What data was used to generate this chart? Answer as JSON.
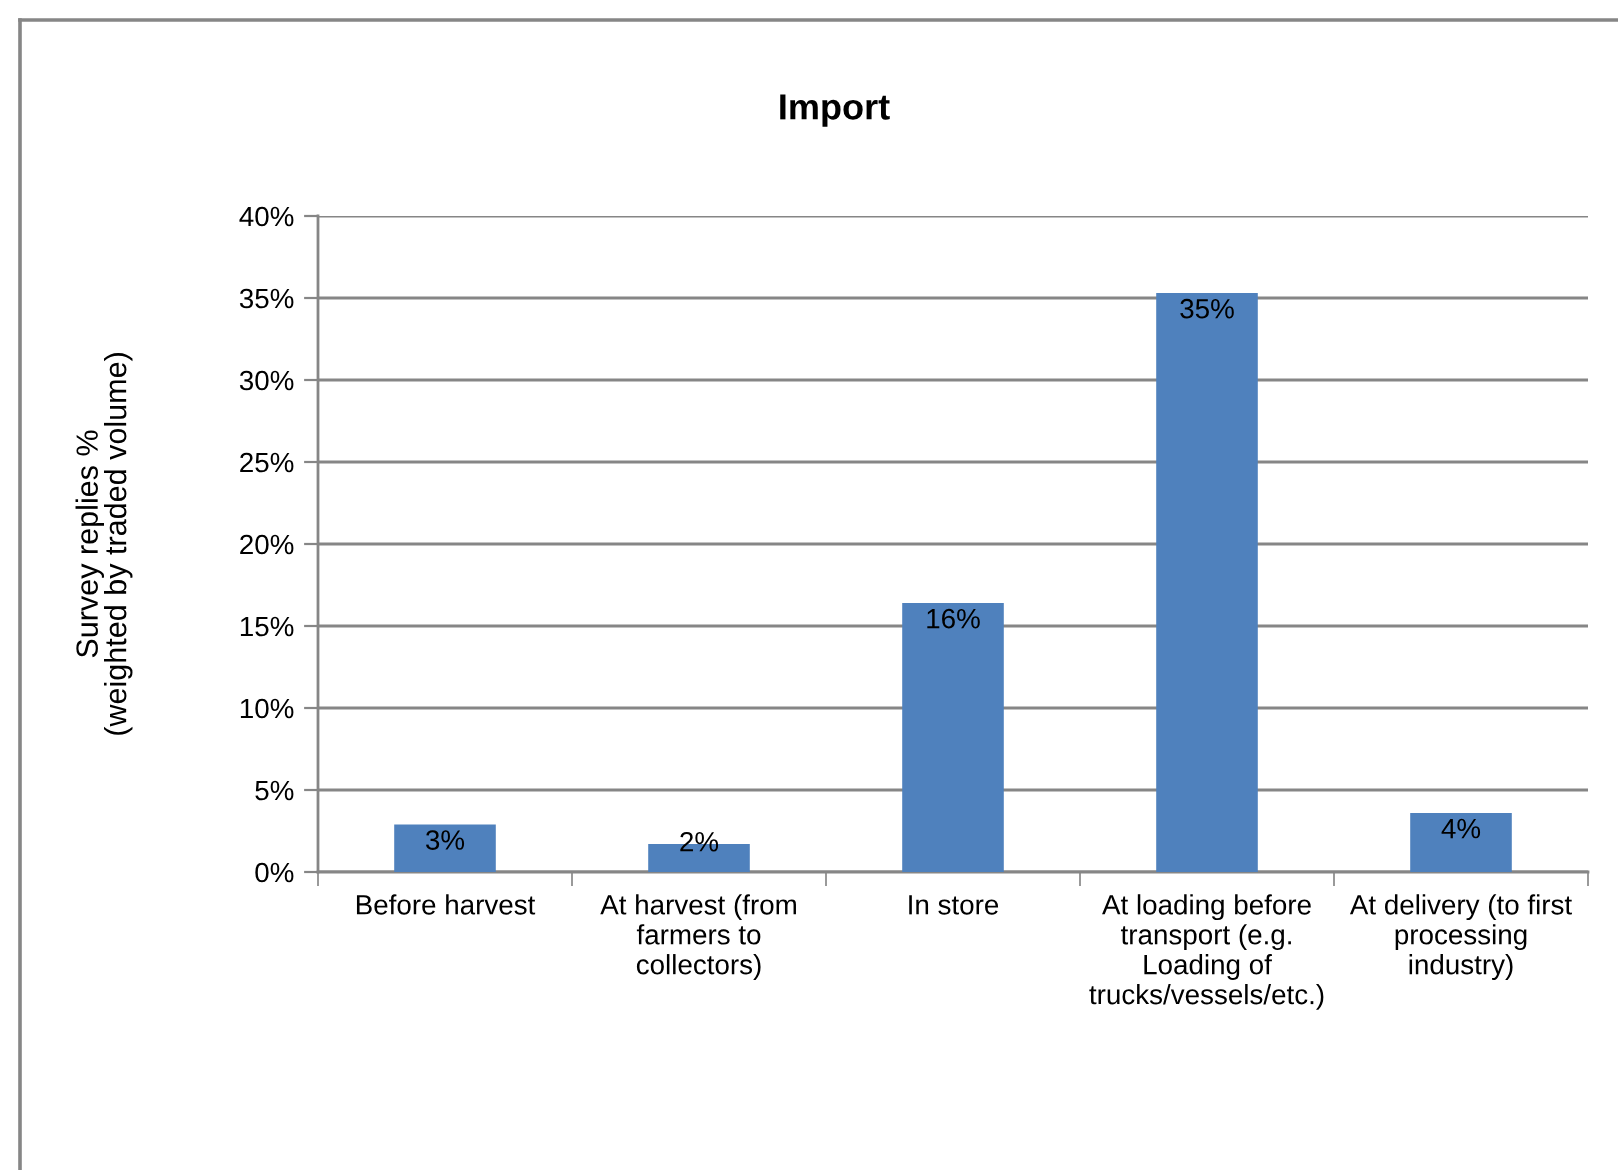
{
  "chart_data": {
    "type": "bar",
    "title": "Import",
    "ylabel": "Survey replies %\n(weighted by traded volume)",
    "categories": [
      "Before harvest",
      "At harvest (from\nfarmers to\ncollectors)",
      "In store",
      "At loading before\ntransport (e.g.\nLoading of\ntrucks/vessels/etc.)",
      "At delivery (to first\nprocessing\nindustry)"
    ],
    "values": [
      2.9,
      1.7,
      16.4,
      35.3,
      3.6
    ],
    "color": "#4f81bd",
    "value_labels": [
      "3%",
      "2%",
      "16%",
      "35%",
      "4%"
    ],
    "ylim": [
      0,
      40
    ],
    "yticks": [
      {
        "value": 0,
        "label": "0%"
      },
      {
        "value": 5,
        "label": "5%"
      },
      {
        "value": 10,
        "label": "10%"
      },
      {
        "value": 15,
        "label": "15%"
      },
      {
        "value": 20,
        "label": "20%"
      },
      {
        "value": 25,
        "label": "25%"
      },
      {
        "value": 30,
        "label": "30%"
      },
      {
        "value": 35,
        "label": "35%"
      },
      {
        "value": 40,
        "label": "40%"
      }
    ],
    "grid": "y"
  }
}
